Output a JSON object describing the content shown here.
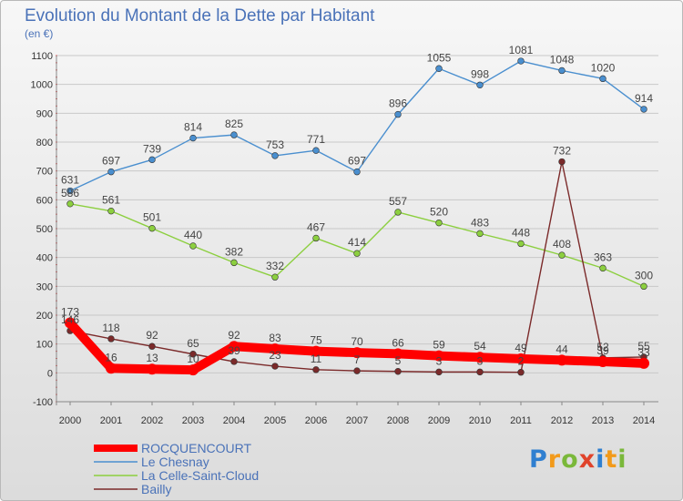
{
  "title": "Evolution du Montant de la Dette par Habitant",
  "subtitle": "(en €)",
  "logo_text": "Proxiti",
  "colors": {
    "background_top": "#f7f7f7",
    "background_bottom": "#dcdcdc",
    "text": "#4a72b8",
    "grid": "#c8c8c8"
  },
  "chart_data": {
    "type": "line",
    "title": "Evolution du Montant de la Dette par Habitant",
    "ylabel": "(en €)",
    "xlabel": "",
    "x": [
      "2000",
      "2001",
      "2002",
      "2003",
      "2004",
      "2005",
      "2006",
      "2007",
      "2008",
      "2009",
      "2010",
      "2011",
      "2012",
      "2013",
      "2014"
    ],
    "ylim": [
      -100,
      1100
    ],
    "yticks": [
      -100,
      0,
      100,
      200,
      300,
      400,
      500,
      600,
      700,
      800,
      900,
      1000,
      1100
    ],
    "grid": "horizontal",
    "legend_position": "bottom-left",
    "series": [
      {
        "name": "ROCQUENCOURT",
        "color": "#ff0000",
        "values": [
          173,
          16,
          13,
          10,
          92,
          83,
          75,
          70,
          66,
          59,
          54,
          49,
          44,
          39,
          33
        ],
        "labels": [
          "173",
          "16",
          "13",
          "10",
          "92",
          "83",
          "75",
          "70",
          "66",
          "59",
          "54",
          "49",
          "44",
          "39",
          "33"
        ]
      },
      {
        "name": "Le Chesnay",
        "color": "#4a8fcf",
        "values": [
          631,
          697,
          739,
          814,
          825,
          753,
          771,
          697,
          896,
          1055,
          998,
          1081,
          1048,
          1020,
          914
        ],
        "labels": [
          "631",
          "697",
          "739",
          "814",
          "825",
          "753",
          "771",
          "697",
          "896",
          "1055",
          "998",
          "1081",
          "1048",
          "1020",
          "914"
        ]
      },
      {
        "name": "La Celle-Saint-Cloud",
        "color": "#8ccf3f",
        "values": [
          586,
          561,
          501,
          440,
          382,
          332,
          467,
          414,
          557,
          520,
          483,
          448,
          408,
          363,
          300
        ],
        "labels": [
          "586",
          "561",
          "501",
          "440",
          "382",
          "332",
          "467",
          "414",
          "557",
          "520",
          "483",
          "448",
          "408",
          "363",
          "300"
        ]
      },
      {
        "name": "Bailly",
        "color": "#7b2a2a",
        "values": [
          146,
          118,
          92,
          65,
          39,
          23,
          11,
          7,
          5,
          3,
          3,
          2,
          732,
          52,
          55
        ],
        "labels": [
          "146",
          "118",
          "92",
          "65",
          "39",
          "23",
          "11",
          "7",
          "5",
          "3",
          "3",
          "2",
          "732",
          "52",
          "55"
        ]
      }
    ]
  }
}
